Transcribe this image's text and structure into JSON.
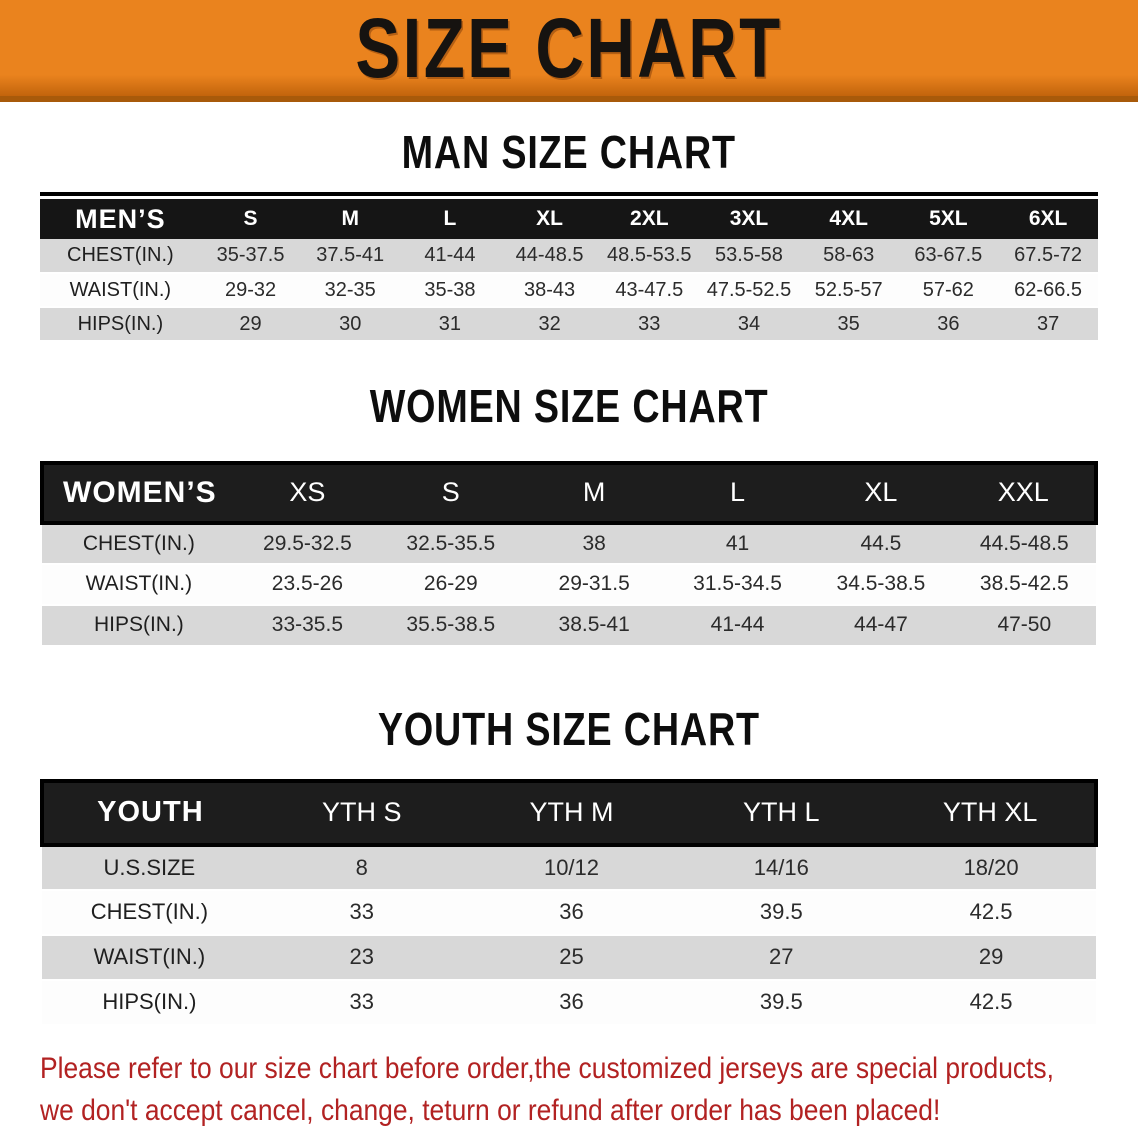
{
  "banner": {
    "title": "SIZE CHART"
  },
  "sections": [
    {
      "heading": "MAN SIZE CHART",
      "table": {
        "label_header": "MEN’S",
        "size_headers": [
          "S",
          "M",
          "L",
          "XL",
          "2XL",
          "3XL",
          "4XL",
          "5XL",
          "6XL"
        ],
        "rows": [
          {
            "label": "CHEST(IN.)",
            "values": [
              "35-37.5",
              "37.5-41",
              "41-44",
              "44-48.5",
              "48.5-53.5",
              "53.5-58",
              "58-63",
              "63-67.5",
              "67.5-72"
            ]
          },
          {
            "label": "WAIST(IN.)",
            "values": [
              "29-32",
              "32-35",
              "35-38",
              "38-43",
              "43-47.5",
              "47.5-52.5",
              "52.5-57",
              "57-62",
              "62-66.5"
            ]
          },
          {
            "label": "HIPS(IN.)",
            "values": [
              "29",
              "30",
              "31",
              "32",
              "33",
              "34",
              "35",
              "36",
              "37"
            ]
          }
        ]
      }
    },
    {
      "heading": "WOMEN SIZE CHART",
      "table": {
        "label_header": "WOMEN’S",
        "size_headers": [
          "XS",
          "S",
          "M",
          "L",
          "XL",
          "XXL"
        ],
        "rows": [
          {
            "label": "CHEST(IN.)",
            "values": [
              "29.5-32.5",
              "32.5-35.5",
              "38",
              "41",
              "44.5",
              "44.5-48.5"
            ]
          },
          {
            "label": "WAIST(IN.)",
            "values": [
              "23.5-26",
              "26-29",
              "29-31.5",
              "31.5-34.5",
              "34.5-38.5",
              "38.5-42.5"
            ]
          },
          {
            "label": "HIPS(IN.)",
            "values": [
              "33-35.5",
              "35.5-38.5",
              "38.5-41",
              "41-44",
              "44-47",
              "47-50"
            ]
          }
        ]
      }
    },
    {
      "heading": "YOUTH SIZE CHART",
      "table": {
        "label_header": "YOUTH",
        "size_headers": [
          "YTH S",
          "YTH M",
          "YTH L",
          "YTH XL"
        ],
        "rows": [
          {
            "label": "U.S.SIZE",
            "values": [
              "8",
              "10/12",
              "14/16",
              "18/20"
            ]
          },
          {
            "label": "CHEST(IN.)",
            "values": [
              "33",
              "36",
              "39.5",
              "42.5"
            ]
          },
          {
            "label": "WAIST(IN.)",
            "values": [
              "23",
              "25",
              "27",
              "29"
            ]
          },
          {
            "label": "HIPS(IN.)",
            "values": [
              "33",
              "36",
              "39.5",
              "42.5"
            ]
          }
        ]
      }
    }
  ],
  "disclaimer": {
    "lines": [
      "Please refer to our size chart before order,the customized jerseys are special products,",
      "we don't accept cancel, change, teturn or refund after order has been placed!"
    ]
  },
  "colors": {
    "banner_bg": "#EA831E",
    "banner_bg_dark": "#C2640C",
    "header_bg": "#151515",
    "row_alt_bg": "#D8D8D8",
    "disclaimer_text": "#B22222"
  }
}
